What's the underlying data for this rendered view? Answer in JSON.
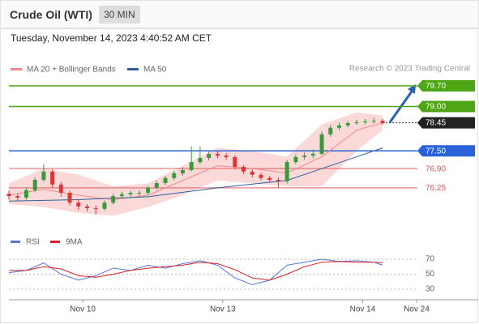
{
  "header": {
    "title": "Crude Oil (WTI)",
    "timeframe": "30 MIN",
    "date": "Tuesday, November 14, 2023 4:40:52 AM CET",
    "credit": "Research © 2023 Trading Central"
  },
  "chart_data": [
    {
      "type": "candlestick",
      "xlim": [
        0,
        47
      ],
      "ylim": [
        75.0,
        80.0
      ],
      "up_color": "#3a9a3a",
      "down_color": "#d83a3a",
      "open": [
        76.05,
        75.97,
        75.92,
        76.17,
        76.52,
        76.8,
        76.36,
        76.08,
        75.75,
        75.62,
        75.56,
        75.54,
        75.75,
        75.97,
        76.03,
        76.08,
        76.08,
        76.25,
        76.41,
        76.58,
        76.74,
        76.85,
        77.12,
        77.26,
        77.4,
        77.34,
        77.29,
        76.96,
        76.8,
        76.69,
        76.58,
        76.52,
        76.47,
        77.12,
        77.29,
        77.34,
        77.4,
        78.06,
        78.28,
        78.36,
        78.44,
        78.47,
        78.5,
        78.52
      ],
      "high": [
        76.15,
        76.05,
        76.25,
        76.6,
        77.05,
        76.88,
        76.45,
        76.15,
        75.85,
        75.7,
        75.65,
        75.82,
        76.05,
        76.12,
        76.15,
        76.18,
        76.32,
        76.5,
        76.66,
        76.82,
        76.95,
        77.65,
        77.65,
        77.5,
        77.48,
        77.42,
        77.35,
        77.02,
        76.88,
        76.75,
        76.66,
        76.6,
        77.2,
        77.38,
        77.45,
        77.55,
        78.15,
        78.38,
        78.45,
        78.52,
        78.55,
        78.58,
        78.62,
        78.58
      ],
      "low": [
        75.85,
        75.8,
        75.85,
        76.1,
        76.45,
        76.25,
        75.95,
        75.65,
        75.5,
        75.45,
        75.35,
        75.48,
        75.68,
        75.9,
        75.95,
        75.98,
        76.0,
        76.18,
        76.35,
        76.5,
        76.66,
        76.8,
        77.05,
        77.18,
        77.25,
        77.2,
        76.88,
        76.72,
        76.6,
        76.5,
        76.45,
        76.25,
        76.4,
        77.05,
        77.2,
        77.25,
        77.35,
        77.98,
        78.2,
        78.3,
        78.38,
        78.4,
        78.42,
        78.38
      ],
      "close": [
        75.97,
        75.92,
        76.17,
        76.52,
        76.8,
        76.36,
        76.08,
        75.75,
        75.62,
        75.56,
        75.54,
        75.75,
        75.97,
        76.03,
        76.08,
        76.08,
        76.25,
        76.41,
        76.58,
        76.74,
        76.85,
        77.12,
        77.26,
        77.4,
        77.34,
        77.29,
        76.96,
        76.8,
        76.69,
        76.58,
        76.52,
        76.47,
        77.12,
        77.29,
        77.34,
        77.4,
        78.06,
        78.28,
        78.36,
        78.44,
        78.47,
        78.5,
        78.52,
        78.44
      ],
      "series": [
        {
          "name": "MA 20 + Bollinger Bands",
          "color": "#f08a8a",
          "band_color": "#fbd9d9",
          "x": [
            0,
            4,
            8,
            12,
            16,
            20,
            24,
            28,
            32,
            36,
            40,
            43
          ],
          "values": [
            76.0,
            76.2,
            76.0,
            75.85,
            76.0,
            76.5,
            77.0,
            76.9,
            76.75,
            77.3,
            78.2,
            78.45
          ],
          "upper": [
            76.4,
            76.9,
            76.7,
            76.3,
            76.4,
            77.0,
            77.6,
            77.5,
            77.3,
            78.4,
            78.8,
            78.7
          ],
          "lower": [
            75.7,
            75.6,
            75.4,
            75.3,
            75.6,
            76.0,
            76.5,
            76.4,
            76.3,
            76.3,
            77.5,
            78.2
          ]
        },
        {
          "name": "MA 50",
          "color": "#2f5f9a",
          "x": [
            0,
            8,
            16,
            24,
            32,
            40,
            43
          ],
          "values": [
            75.8,
            75.85,
            75.95,
            76.25,
            76.5,
            77.3,
            77.6
          ]
        }
      ],
      "levels": [
        {
          "value": 79.7,
          "label": "79.70",
          "color": "#4ea614",
          "boxed": true,
          "dotted": false
        },
        {
          "value": 79.0,
          "label": "79.00",
          "color": "#4ea614",
          "boxed": true,
          "dotted": false
        },
        {
          "value": 78.45,
          "label": "78.45",
          "color": "#222222",
          "boxed": true,
          "dotted": true
        },
        {
          "value": 77.5,
          "label": "77.50",
          "color": "#2962d9",
          "boxed": true,
          "dotted": false
        },
        {
          "value": 76.9,
          "label": "76.90",
          "color": "#e05050",
          "boxed": false,
          "dotted": false
        },
        {
          "value": 76.25,
          "label": "76.25",
          "color": "#e05050",
          "boxed": false,
          "dotted": false
        }
      ]
    },
    {
      "type": "line",
      "xlim": [
        0,
        47
      ],
      "ylim": [
        10,
        100
      ],
      "yticks": [
        70,
        50,
        30
      ],
      "grid": true,
      "xticks": [
        {
          "value": 8.5,
          "label": "Nov 10"
        },
        {
          "value": 24.6,
          "label": "Nov 13"
        },
        {
          "value": 40.7,
          "label": "Nov 14"
        },
        {
          "value": 46.9,
          "label": "Nov 24"
        }
      ],
      "series": [
        {
          "name": "RSI",
          "color": "#5577dd",
          "x": [
            0,
            2,
            4,
            6,
            8,
            10,
            12,
            14,
            16,
            18,
            20,
            22,
            24,
            26,
            28,
            30,
            32,
            34,
            36,
            38,
            40,
            42,
            43
          ],
          "values": [
            52,
            55,
            65,
            50,
            42,
            48,
            58,
            55,
            62,
            58,
            64,
            68,
            62,
            45,
            36,
            42,
            62,
            66,
            70,
            67,
            68,
            66,
            62
          ]
        },
        {
          "name": "9MA",
          "color": "#dd2222",
          "x": [
            0,
            2,
            4,
            6,
            8,
            10,
            12,
            14,
            16,
            18,
            20,
            22,
            24,
            26,
            28,
            30,
            32,
            34,
            36,
            38,
            40,
            42,
            43
          ],
          "values": [
            55,
            55,
            60,
            57,
            48,
            46,
            50,
            55,
            58,
            60,
            62,
            66,
            64,
            56,
            45,
            42,
            50,
            60,
            66,
            67,
            66,
            66,
            65
          ]
        }
      ]
    }
  ]
}
